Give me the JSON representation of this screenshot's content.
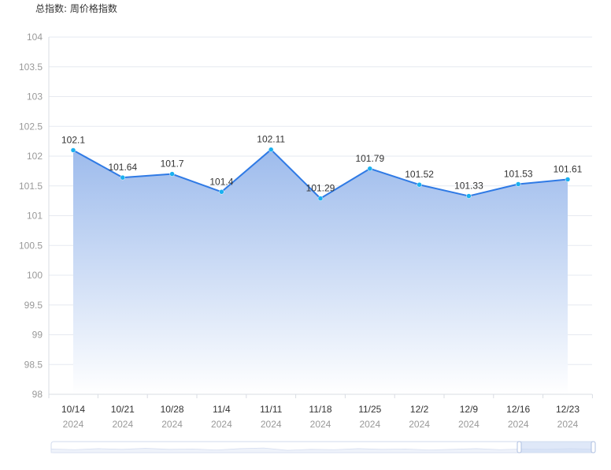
{
  "chart_data": {
    "type": "area",
    "title": "总指数: 周价格指数",
    "categories": [
      "10/14",
      "10/21",
      "10/28",
      "11/4",
      "11/11",
      "11/18",
      "11/25",
      "12/2",
      "12/9",
      "12/16",
      "12/23"
    ],
    "category_years": [
      "2024",
      "2024",
      "2024",
      "2024",
      "2024",
      "2024",
      "2024",
      "2024",
      "2024",
      "2024",
      "2024"
    ],
    "values": [
      102.1,
      101.64,
      101.7,
      101.4,
      102.11,
      101.29,
      101.79,
      101.52,
      101.33,
      101.53,
      101.61
    ],
    "ylim": [
      98,
      104
    ],
    "yticks": [
      98,
      98.5,
      99,
      99.5,
      100,
      100.5,
      101,
      101.5,
      102,
      102.5,
      103,
      103.5,
      104
    ],
    "grid": true,
    "legend": "none",
    "data_zoom": true,
    "colors": {
      "line": "#2f7ae5",
      "marker": "#1ab0f0",
      "area_top": "#9dbbec",
      "area_bottom": "#ffffff",
      "grid": "#e6e9f0"
    }
  }
}
